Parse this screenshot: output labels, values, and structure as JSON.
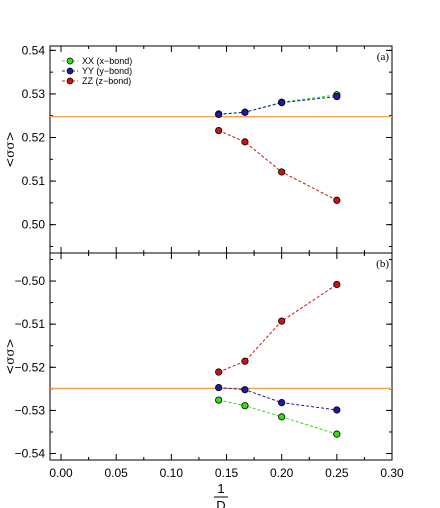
{
  "chart_data": {
    "type": "line",
    "shared_x": {
      "xlabel_numerator": "1",
      "xlabel_denominator": "D",
      "xlim": [
        -0.01,
        0.3
      ],
      "xticks": [
        0.0,
        0.05,
        0.1,
        0.15,
        0.2,
        0.25,
        0.3
      ],
      "xtick_labels": [
        "0.00",
        "0.05",
        "0.10",
        "0.15",
        "0.20",
        "0.25",
        "0.30"
      ]
    },
    "legend": {
      "placement": "top-left",
      "entries": [
        "XX (x−bond)",
        "YY (y−bond)",
        "ZZ (z−bond)"
      ]
    },
    "colors": {
      "xx": "#33dd11",
      "yy": "#1a1aaa",
      "zz": "#cc1111",
      "reference": "#f0a050"
    },
    "panels": [
      {
        "tag": "(a)",
        "ylabel": "<σσ>",
        "ylim": [
          0.4935,
          0.541
        ],
        "yticks": [
          0.5,
          0.51,
          0.52,
          0.53,
          0.54
        ],
        "ytick_labels": [
          "0.50",
          "0.51",
          "0.52",
          "0.53",
          "0.54"
        ],
        "reference_line": 0.5248,
        "series": [
          {
            "name": "XX (x−bond)",
            "key": "xx",
            "x": [
              0.1429,
              0.1667,
              0.2,
              0.25
            ],
            "y": [
              0.5254,
              0.5258,
              0.5281,
              0.5298
            ]
          },
          {
            "name": "YY (y−bond)",
            "key": "yy",
            "x": [
              0.1429,
              0.1667,
              0.2,
              0.25
            ],
            "y": [
              0.5253,
              0.5258,
              0.528,
              0.5294
            ]
          },
          {
            "name": "ZZ (z−bond)",
            "key": "zz",
            "x": [
              0.1429,
              0.1667,
              0.2,
              0.25
            ],
            "y": [
              0.5216,
              0.519,
              0.5121,
              0.5056
            ]
          }
        ]
      },
      {
        "tag": "(b)",
        "ylabel": "<σσ>",
        "ylim": [
          -0.5415,
          -0.4935
        ],
        "yticks": [
          -0.54,
          -0.53,
          -0.52,
          -0.51,
          -0.5
        ],
        "ytick_labels": [
          "−0.54",
          "−0.53",
          "−0.52",
          "−0.51",
          "−0.50"
        ],
        "reference_line": -0.5249,
        "series": [
          {
            "name": "XX (x−bond)",
            "key": "xx",
            "x": [
              0.1429,
              0.1667,
              0.2,
              0.25
            ],
            "y": [
              -0.5276,
              -0.5289,
              -0.5315,
              -0.5355
            ]
          },
          {
            "name": "YY (y−bond)",
            "key": "yy",
            "x": [
              0.1429,
              0.1667,
              0.2,
              0.25
            ],
            "y": [
              -0.5247,
              -0.5252,
              -0.5282,
              -0.5299
            ]
          },
          {
            "name": "ZZ (z−bond)",
            "key": "zz",
            "x": [
              0.1429,
              0.1667,
              0.2,
              0.25
            ],
            "y": [
              -0.5211,
              -0.5186,
              -0.5093,
              -0.5008
            ]
          }
        ]
      }
    ]
  }
}
